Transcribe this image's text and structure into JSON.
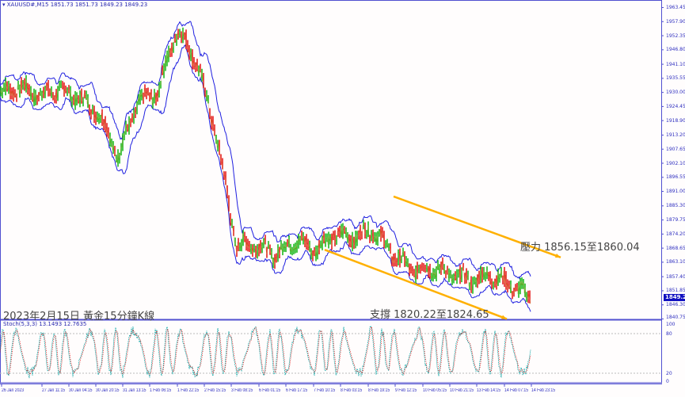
{
  "header": {
    "symbol": "XAUUSD#,M15",
    "ohlc": "1851.73 1851.73 1849.23 1849.23"
  },
  "stoch": {
    "label": "Stoch(5,3,3) 13.1493 12.7635",
    "levels": [
      "100",
      "80",
      "20",
      "0"
    ]
  },
  "annotations": {
    "title": "2023年2月15日 黃金15分鐘K線",
    "resistance": "壓力 1856.15至1860.04",
    "support": "支撐 1820.22至1824.65"
  },
  "colors": {
    "bands": "#2020e0",
    "trendline": "#ffb000",
    "bull": "#00b000",
    "bear": "#e00000",
    "stoch_main": "#00a0a0",
    "stoch_signal": "#e00000"
  },
  "chart_data": {
    "type": "line",
    "title": "",
    "ylim": [
      1840.75,
      1963.45
    ],
    "y_ticks": [
      "1963.45",
      "1957.90",
      "1952.35",
      "1946.80",
      "1941.10",
      "1935.55",
      "1930.00",
      "1924.45",
      "1918.90",
      "1913.20",
      "1907.65",
      "1902.10",
      "1896.55",
      "1891.00",
      "1885.30",
      "1879.75",
      "1874.20",
      "1868.65",
      "1863.10",
      "1857.40",
      "1851.85",
      "1846.30",
      "1840.75"
    ],
    "current_price": "1849.23",
    "x_ticks": [
      "26 Jan 2023",
      "27 Jan 11:15",
      "30 Jan 04:15",
      "30 Jan 20:15",
      "31 Jan 13:15",
      "1 Feb 06:15",
      "1 Feb 22:15",
      "2 Feb 15:15",
      "3 Feb 08:15",
      "6 Feb 01:15",
      "6 Feb 17:15",
      "7 Feb 10:15",
      "8 Feb 03:15",
      "8 Feb 19:15",
      "9 Feb 12:15",
      "10 Feb 05:15",
      "10 Feb 21:15",
      "13 Feb 14:15",
      "14 Feb 07:15",
      "14 Feb 23:15"
    ],
    "close_path": [
      1930,
      1932,
      1929,
      1931,
      1928,
      1922,
      1905,
      1926,
      1930,
      1955,
      1942,
      1913,
      1870,
      1870,
      1866,
      1872,
      1868,
      1874,
      1873,
      1876,
      1866,
      1860,
      1861,
      1858,
      1856,
      1858,
      1854,
      1849.23
    ],
    "trendlines": [
      {
        "from": 1889,
        "to": 1865
      },
      {
        "from": 1868,
        "to": 1840.75
      }
    ]
  }
}
